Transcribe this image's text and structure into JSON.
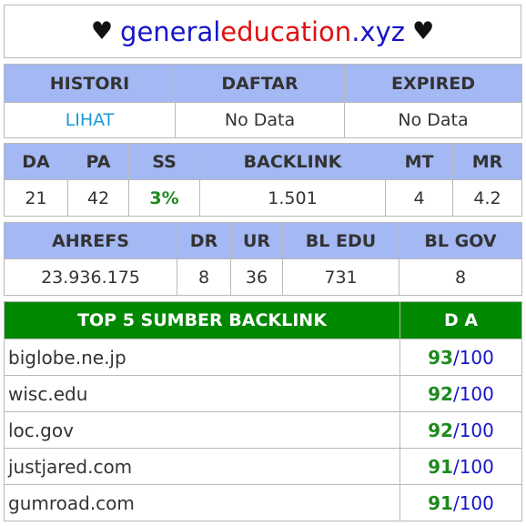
{
  "header": {
    "heart": "♥",
    "title_part1": "general",
    "title_part2": "education",
    "title_part3": ".xyz"
  },
  "registry": {
    "headers": [
      "HISTORI",
      "DAFTAR",
      "EXPIRED"
    ],
    "values": [
      "LIHAT",
      "No Data",
      "No Data"
    ]
  },
  "metrics": {
    "headers": [
      "DA",
      "PA",
      "SS",
      "BACKLINK",
      "MT",
      "MR"
    ],
    "values": [
      "21",
      "42",
      "3%",
      "1.501",
      "4",
      "4.2"
    ]
  },
  "ahrefs": {
    "headers": [
      "AHREFS",
      "DR",
      "UR",
      "BL EDU",
      "BL GOV"
    ],
    "values": [
      "23.936.175",
      "8",
      "36",
      "731",
      "8"
    ]
  },
  "top5": {
    "header_source": "TOP 5 SUMBER BACKLINK",
    "header_da": "D A",
    "items": [
      {
        "site": "biglobe.ne.jp",
        "score": "93",
        "max": "/100"
      },
      {
        "site": "wisc.edu",
        "score": "92",
        "max": "/100"
      },
      {
        "site": "loc.gov",
        "score": "92",
        "max": "/100"
      },
      {
        "site": "justjared.com",
        "score": "91",
        "max": "/100"
      },
      {
        "site": "gumroad.com",
        "score": "91",
        "max": "/100"
      }
    ]
  },
  "colors": {
    "header_bg": "#a4b8f4",
    "top5_bg": "#008800",
    "score_green": "#1e8a1e",
    "link_blue": "#1a9ad6",
    "title_blue": "#1515c8",
    "title_red": "#e01010"
  }
}
